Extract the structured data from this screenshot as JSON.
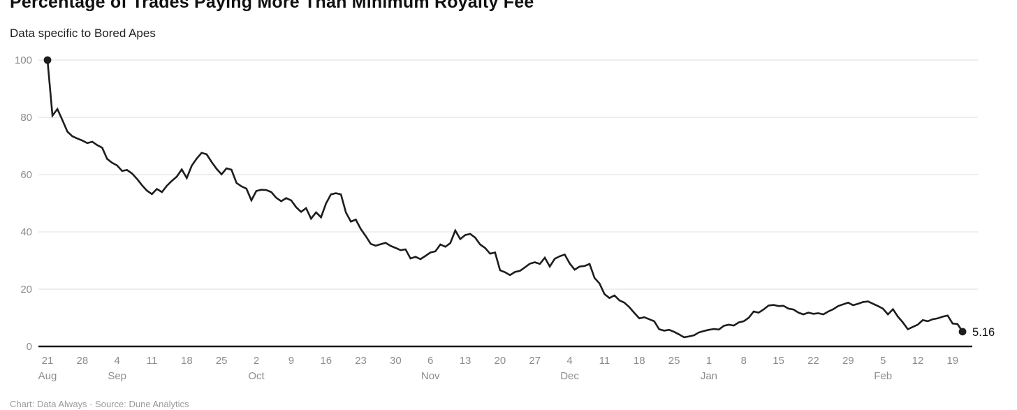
{
  "header": {
    "title": "Percentage of Trades Paying More Than Minimum Royalty Fee",
    "subtitle": "Data specific to Bored Apes"
  },
  "footer": {
    "text": "Chart: Data Always · Source: Dune Analytics"
  },
  "chart_data": {
    "type": "line",
    "title": "Percentage of Trades Paying More Than Minimum Royalty Fee",
    "subtitle": "Data specific to Bored Apes",
    "ylabel": "",
    "xlabel": "",
    "unit": "percent",
    "frequency": "daily",
    "x_start": "Aug 21",
    "x_end": "Feb 21",
    "ylim": [
      0,
      100
    ],
    "grid": "horizontal",
    "legend_position": "none",
    "y_ticks": [
      0,
      20,
      40,
      60,
      80,
      100
    ],
    "x_ticks": [
      {
        "label": "21",
        "day": 0,
        "month": "Aug"
      },
      {
        "label": "28",
        "day": 7,
        "month": ""
      },
      {
        "label": "4",
        "day": 14,
        "month": "Sep"
      },
      {
        "label": "11",
        "day": 21,
        "month": ""
      },
      {
        "label": "18",
        "day": 28,
        "month": ""
      },
      {
        "label": "25",
        "day": 35,
        "month": ""
      },
      {
        "label": "2",
        "day": 42,
        "month": "Oct"
      },
      {
        "label": "9",
        "day": 49,
        "month": ""
      },
      {
        "label": "16",
        "day": 56,
        "month": ""
      },
      {
        "label": "23",
        "day": 63,
        "month": ""
      },
      {
        "label": "30",
        "day": 70,
        "month": ""
      },
      {
        "label": "6",
        "day": 77,
        "month": "Nov"
      },
      {
        "label": "13",
        "day": 84,
        "month": ""
      },
      {
        "label": "20",
        "day": 91,
        "month": ""
      },
      {
        "label": "27",
        "day": 98,
        "month": ""
      },
      {
        "label": "4",
        "day": 105,
        "month": "Dec"
      },
      {
        "label": "11",
        "day": 112,
        "month": ""
      },
      {
        "label": "18",
        "day": 119,
        "month": ""
      },
      {
        "label": "25",
        "day": 126,
        "month": ""
      },
      {
        "label": "1",
        "day": 133,
        "month": "Jan"
      },
      {
        "label": "8",
        "day": 140,
        "month": ""
      },
      {
        "label": "15",
        "day": 147,
        "month": ""
      },
      {
        "label": "22",
        "day": 154,
        "month": ""
      },
      {
        "label": "29",
        "day": 161,
        "month": ""
      },
      {
        "label": "5",
        "day": 168,
        "month": "Feb"
      },
      {
        "label": "12",
        "day": 175,
        "month": ""
      },
      {
        "label": "19",
        "day": 182,
        "month": ""
      }
    ],
    "values": [
      100,
      80.6,
      82.9,
      79.0,
      75.0,
      73.4,
      72.6,
      71.9,
      71.0,
      71.5,
      70.3,
      69.4,
      65.5,
      64.1,
      63.2,
      61.3,
      61.6,
      60.4,
      58.5,
      56.3,
      54.4,
      53.2,
      55.0,
      53.9,
      56.1,
      57.8,
      59.3,
      61.8,
      58.8,
      63.1,
      65.6,
      67.6,
      67.1,
      64.4,
      62.0,
      60.1,
      62.2,
      61.7,
      57.1,
      55.9,
      55.1,
      51.0,
      54.3,
      54.7,
      54.6,
      53.9,
      51.9,
      50.7,
      51.8,
      51.0,
      48.6,
      47.0,
      48.3,
      44.6,
      46.8,
      45.1,
      49.9,
      53.1,
      53.5,
      53.1,
      46.8,
      43.6,
      44.3,
      41.0,
      38.5,
      35.8,
      35.2,
      35.7,
      36.2,
      35.1,
      34.4,
      33.6,
      33.9,
      30.7,
      31.3,
      30.5,
      31.6,
      32.8,
      33.2,
      35.6,
      34.8,
      36.1,
      40.5,
      37.5,
      38.9,
      39.3,
      38.0,
      35.6,
      34.4,
      32.4,
      32.8,
      26.6,
      25.9,
      24.9,
      26.0,
      26.4,
      27.6,
      28.9,
      29.4,
      28.8,
      31.0,
      27.9,
      30.6,
      31.5,
      32.1,
      29.0,
      26.8,
      27.9,
      28.1,
      28.8,
      23.9,
      22.0,
      18.3,
      16.9,
      17.8,
      16.1,
      15.3,
      13.7,
      11.7,
      9.8,
      10.2,
      9.5,
      8.8,
      6.0,
      5.5,
      5.8,
      5.1,
      4.2,
      3.2,
      3.5,
      3.9,
      4.9,
      5.4,
      5.8,
      6.1,
      5.9,
      7.2,
      7.6,
      7.3,
      8.4,
      8.8,
      10.0,
      12.2,
      11.8,
      12.9,
      14.3,
      14.5,
      14.1,
      14.2,
      13.2,
      12.9,
      11.8,
      11.2,
      11.8,
      11.4,
      11.6,
      11.2,
      12.2,
      13.0,
      14.1,
      14.7,
      15.3,
      14.4,
      14.9,
      15.5,
      15.7,
      14.9,
      14.1,
      13.2,
      11.2,
      13.0,
      10.4,
      8.4,
      6.0,
      6.8,
      7.6,
      9.2,
      8.8,
      9.5,
      9.8,
      10.4,
      10.8,
      8.0,
      7.8,
      5.16
    ],
    "start_value": 100,
    "end_value": 5.16,
    "end_label": "5.16",
    "colors": {
      "line": "#1d1d1d",
      "point": "#1d1d1d",
      "grid": "#e4e4e4",
      "axis_zero": "#1a1a1a",
      "tick_label": "#8c8c8c",
      "month_label": "#8c8c8c",
      "end_label": "#111111"
    }
  }
}
